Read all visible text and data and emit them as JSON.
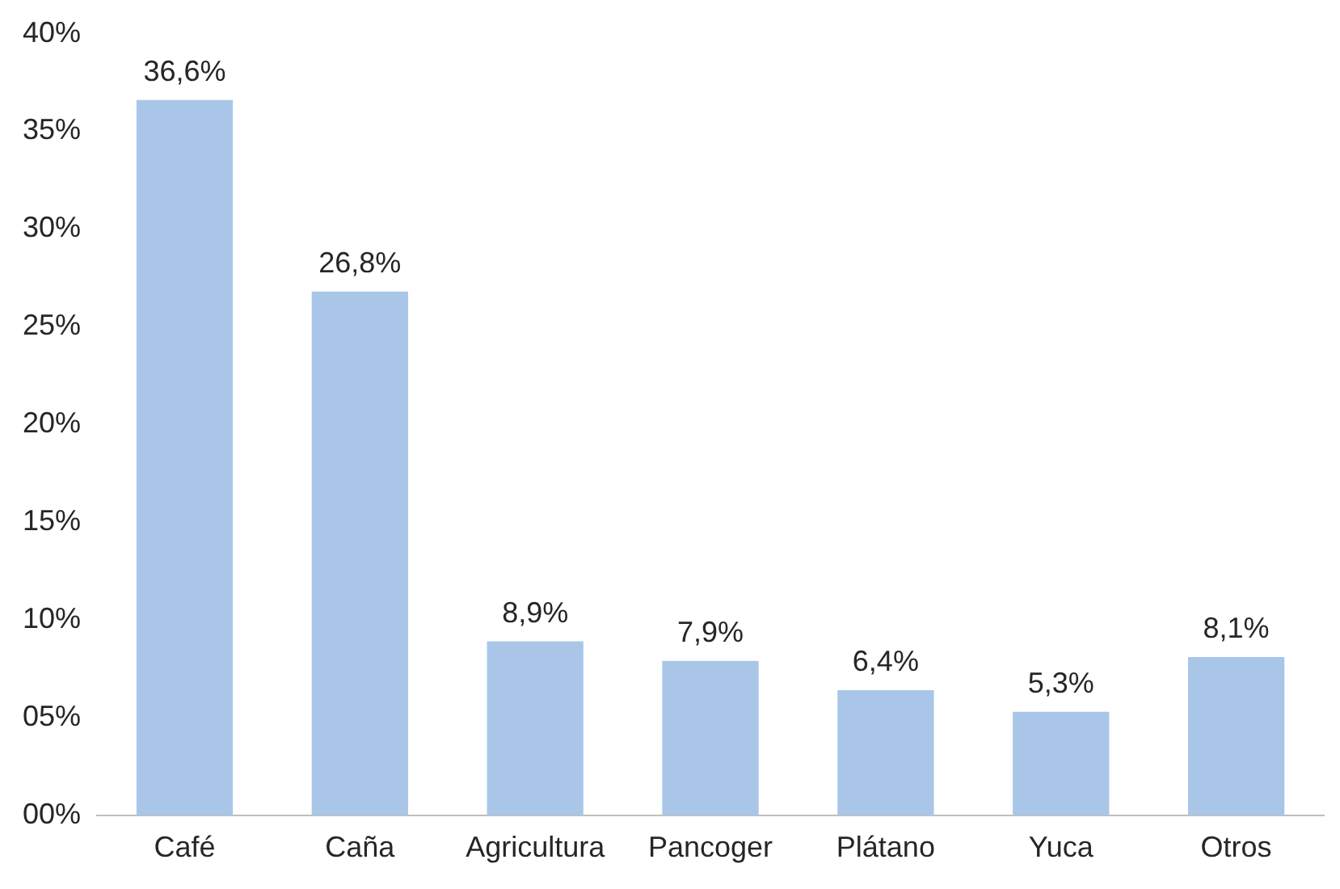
{
  "chart_data": {
    "type": "bar",
    "categories": [
      "Café",
      "Caña",
      "Agricultura",
      "Pancoger",
      "Plátano",
      "Yuca",
      "Otros"
    ],
    "values": [
      36.6,
      26.8,
      8.9,
      7.9,
      6.4,
      5.3,
      8.1
    ],
    "value_labels": [
      "36,6%",
      "26,8%",
      "8,9%",
      "7,9%",
      "6,4%",
      "5,3%",
      "8,1%"
    ],
    "color": "#a9c6e8",
    "ylim": [
      0,
      40
    ],
    "yticks": [
      {
        "value": 0,
        "label": "00%"
      },
      {
        "value": 5,
        "label": "05%"
      },
      {
        "value": 10,
        "label": "10%"
      },
      {
        "value": 15,
        "label": "15%"
      },
      {
        "value": 20,
        "label": "20%"
      },
      {
        "value": 25,
        "label": "25%"
      },
      {
        "value": 30,
        "label": "30%"
      },
      {
        "value": 35,
        "label": "35%"
      },
      {
        "value": 40,
        "label": "40%"
      }
    ],
    "grid": false,
    "legend": false
  }
}
